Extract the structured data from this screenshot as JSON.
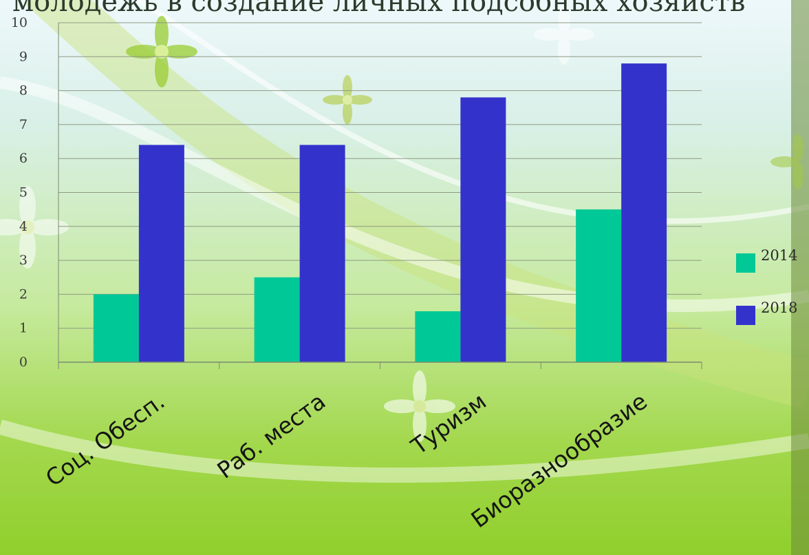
{
  "slide": {
    "title": "молодежь в создание личных подсобных хозяйств"
  },
  "chart_data": {
    "type": "bar",
    "categories": [
      "Соц. Обесп.",
      "Раб. места",
      "Туризм",
      "Биоразнообразие"
    ],
    "series": [
      {
        "name": "2014",
        "values": [
          2,
          2.5,
          1.5,
          4.5
        ],
        "color": "#00c896"
      },
      {
        "name": "2018",
        "values": [
          6.4,
          6.4,
          7.8,
          8.8
        ],
        "color": "#3333cc"
      }
    ],
    "yticks": [
      0,
      1,
      2,
      3,
      4,
      5,
      6,
      7,
      8,
      9,
      10
    ],
    "ylim": [
      0,
      10
    ],
    "grid": true,
    "legend": "right"
  }
}
